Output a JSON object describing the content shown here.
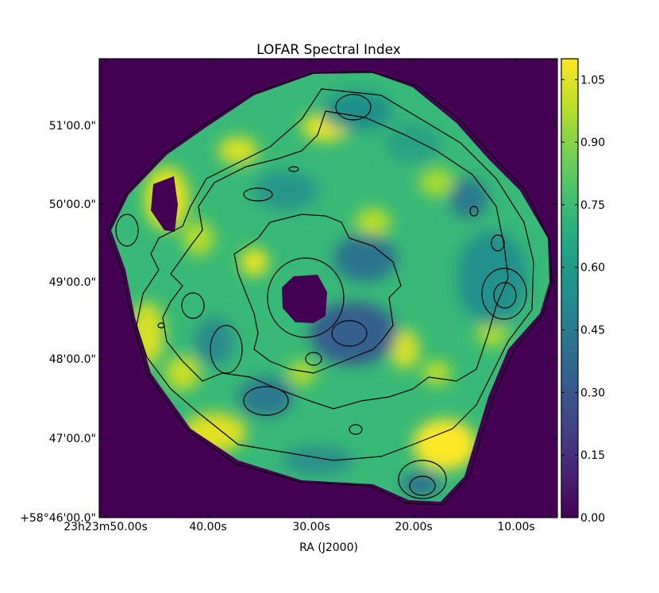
{
  "chart_data": {
    "type": "heatmap",
    "title": "LOFAR Spectral Index",
    "xlabel": "RA (J2000)",
    "ylabel": "",
    "x_tick_labels": [
      "23h23m50.00s",
      "40.00s",
      "30.00s",
      "20.00s",
      "10.00s"
    ],
    "y_tick_labels": [
      "+58°46'00.0\"",
      "47'00.0\"",
      "48'00.0\"",
      "49'00.0\"",
      "50'00.0\"",
      "51'00.0\""
    ],
    "colorbar": {
      "colormap": "viridis",
      "vmin": 0.0,
      "vmax": 1.1,
      "ticks": [
        0.0,
        0.15,
        0.3,
        0.45,
        0.6,
        0.75,
        0.9,
        1.05
      ],
      "tick_labels": [
        "0.00",
        "0.15",
        "0.30",
        "0.45",
        "0.60",
        "0.75",
        "0.90",
        "1.05"
      ]
    },
    "background_value": 0.0,
    "has_contours": true,
    "grid": false
  }
}
